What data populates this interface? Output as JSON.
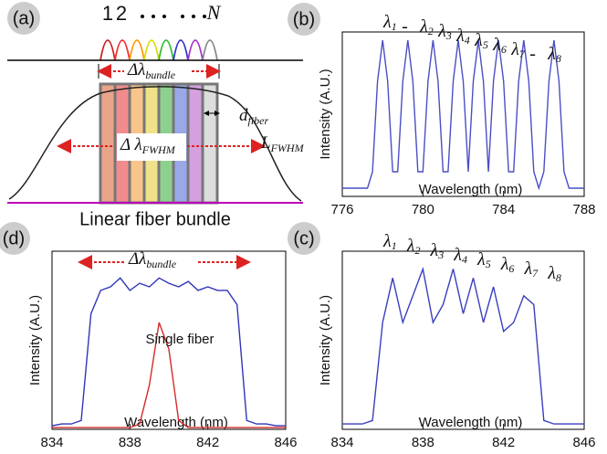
{
  "diagram": {
    "label": "(a)",
    "channel_first": "1",
    "channel_second": "2",
    "channel_last": "N",
    "bundle_symbol": "Δλ",
    "bundle_subscript": "bundle",
    "fwhm_symbol": "Δ λ",
    "fwhm_subscript": "FWHM",
    "fiber_symbol": "d",
    "fiber_subscript": "fiber",
    "length_symbol": "L",
    "length_subscript": "FWHM",
    "caption": "Linear fiber bundle"
  },
  "chart_data": [
    {
      "type": "line",
      "label": "(b)",
      "x_label": "Wavelength (nm)",
      "y_label": "Intensity (A.U.)",
      "xlim": [
        776,
        788
      ],
      "xticks": [
        776,
        780,
        784,
        788
      ],
      "ylim": [
        0,
        1
      ],
      "peak_labels": [
        {
          "text": "λ",
          "sub": "1"
        },
        {
          "text": "-"
        },
        {
          "text": "λ",
          "sub": "2"
        },
        {
          "text": "λ",
          "sub": "3"
        },
        {
          "text": "λ",
          "sub": "4"
        },
        {
          "text": "λ",
          "sub": "5"
        },
        {
          "text": "λ",
          "sub": "6"
        },
        {
          "text": "λ",
          "sub": "7"
        },
        {
          "text": "-"
        },
        {
          "text": "λ",
          "sub": "8"
        }
      ],
      "x": [
        776,
        776.25,
        776.5,
        776.75,
        777,
        777.25,
        777.5,
        777.75,
        778,
        778.25,
        778.5,
        778.75,
        779,
        779.25,
        779.5,
        779.75,
        780,
        780.25,
        780.5,
        780.75,
        781,
        781.25,
        781.5,
        781.75,
        782,
        782.25,
        782.5,
        782.75,
        783,
        783.25,
        783.5,
        783.75,
        784,
        784.25,
        784.5,
        784.75,
        785,
        785.25,
        785.5,
        785.75,
        786,
        786.25,
        786.5,
        786.75,
        787,
        787.25,
        787.5,
        787.75,
        788
      ],
      "series": [
        {
          "color": "#4a4fc4",
          "values": [
            0.05,
            0.05,
            0.05,
            0.05,
            0.05,
            0.05,
            0.15,
            0.7,
            0.95,
            0.7,
            0.15,
            0.15,
            0.7,
            0.95,
            0.7,
            0.15,
            0.15,
            0.7,
            0.95,
            0.7,
            0.15,
            0.15,
            0.7,
            0.95,
            0.7,
            0.15,
            0.7,
            0.95,
            0.7,
            0.15,
            0.7,
            0.95,
            0.7,
            0.15,
            0.15,
            0.7,
            0.95,
            0.7,
            0.15,
            0.05,
            0.15,
            0.7,
            0.95,
            0.7,
            0.15,
            0.05,
            0.05,
            0.05,
            0.05
          ]
        }
      ]
    },
    {
      "type": "line",
      "label": "(c)",
      "x_label": "Wavelength (nm)",
      "y_label": "Intensity (A.U.)",
      "xlim": [
        834,
        846
      ],
      "xticks": [
        834,
        838,
        842,
        846
      ],
      "ylim": [
        0,
        1
      ],
      "peak_labels": [
        {
          "text": "λ",
          "sub": "1"
        },
        {
          "text": "λ",
          "sub": "2"
        },
        {
          "text": "λ",
          "sub": "3"
        },
        {
          "text": "λ",
          "sub": "4"
        },
        {
          "text": "λ",
          "sub": "5"
        },
        {
          "text": "λ",
          "sub": "6"
        },
        {
          "text": "λ",
          "sub": "7"
        },
        {
          "text": "λ",
          "sub": "8"
        }
      ],
      "x": [
        834,
        834.5,
        835,
        835.5,
        836,
        836.5,
        837,
        837.5,
        838,
        838.5,
        839,
        839.5,
        840,
        840.5,
        841,
        841.5,
        842,
        842.5,
        843,
        843.5,
        844,
        844.5,
        845,
        845.5,
        846
      ],
      "series": [
        {
          "color": "#3a3fbf",
          "values": [
            0.03,
            0.03,
            0.03,
            0.05,
            0.6,
            0.85,
            0.6,
            0.75,
            0.9,
            0.6,
            0.7,
            0.9,
            0.65,
            0.85,
            0.6,
            0.8,
            0.55,
            0.6,
            0.75,
            0.7,
            0.05,
            0.03,
            0.03,
            0.03,
            0.03
          ]
        }
      ]
    },
    {
      "type": "line",
      "label": "(d)",
      "x_label": "Wavelength (nm)",
      "y_label": "Intensity (A.U.)",
      "xlim": [
        834,
        846
      ],
      "xticks": [
        834,
        838,
        842,
        846
      ],
      "ylim": [
        0,
        1
      ],
      "bundle_symbol": "Δλ",
      "bundle_subscript": "bundle",
      "annotation": "Single fiber",
      "x": [
        834,
        834.5,
        835,
        835.5,
        836,
        836.5,
        837,
        837.5,
        838,
        838.5,
        839,
        839.5,
        840,
        840.5,
        841,
        841.5,
        842,
        842.5,
        843,
        843.5,
        844,
        844.5,
        845,
        845.5,
        846
      ],
      "series": [
        {
          "color": "#2f34b8",
          "values": [
            0.02,
            0.03,
            0.03,
            0.05,
            0.65,
            0.78,
            0.8,
            0.85,
            0.78,
            0.82,
            0.8,
            0.85,
            0.82,
            0.8,
            0.83,
            0.78,
            0.8,
            0.78,
            0.78,
            0.7,
            0.05,
            0.03,
            0.03,
            0.02,
            0.02
          ]
        },
        {
          "color": "#d42a2a",
          "values": [
            0.01,
            0.01,
            0.01,
            0.01,
            0.01,
            0.01,
            0.01,
            0.01,
            0.01,
            0.03,
            0.25,
            0.6,
            0.45,
            0.05,
            0.01,
            0.01,
            0.01,
            0.01,
            0.01,
            0.01,
            0.01,
            0.01,
            0.01,
            0.01,
            0.01
          ]
        }
      ]
    }
  ]
}
